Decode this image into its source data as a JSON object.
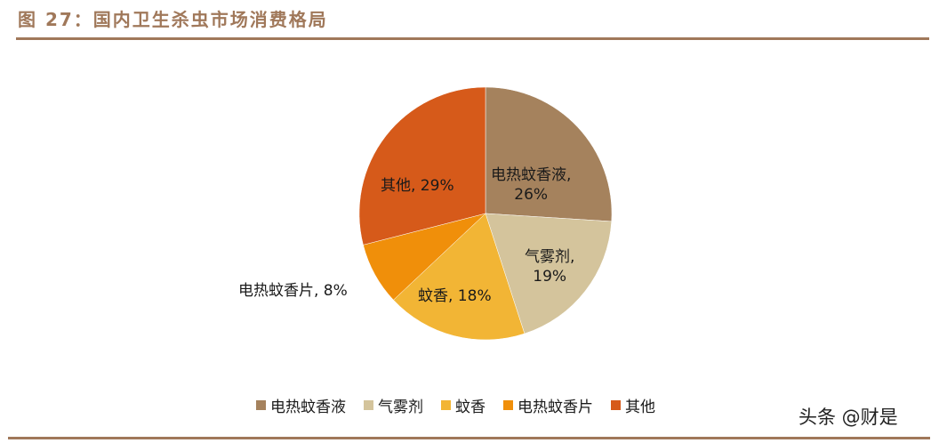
{
  "header": {
    "title": "图 27：国内卫生杀虫市场消费格局"
  },
  "chart_data": {
    "type": "pie",
    "title": "国内卫生杀虫市场消费格局",
    "start_angle": "12 o'clock, clockwise",
    "categories": [
      "电热蚊香液",
      "气雾剂",
      "蚊香",
      "电热蚊香片",
      "其他"
    ],
    "values": [
      26,
      19,
      18,
      8,
      29
    ],
    "unit": "%",
    "colors": [
      "#a5825d",
      "#d4c49c",
      "#f2b535",
      "#f08f0a",
      "#d65a1a"
    ],
    "data_labels": [
      "电热蚊香液, 26%",
      "气雾剂, 19%",
      "蚊香, 18%",
      "电热蚊香片, 8%",
      "其他, 29%"
    ],
    "legend_position": "bottom"
  },
  "labels": {
    "ehl": {
      "line1": "电热蚊香液,",
      "line2": "26%"
    },
    "qwj": {
      "line1": "气雾剂,",
      "line2": "19%"
    },
    "wx": "蚊香, 18%",
    "ehp": "电热蚊香片, 8%",
    "qt": "其他, 29%"
  },
  "legend": {
    "items": [
      {
        "label": "电热蚊香液",
        "color": "#a5825d"
      },
      {
        "label": "气雾剂",
        "color": "#d4c49c"
      },
      {
        "label": "蚊香",
        "color": "#f2b535"
      },
      {
        "label": "电热蚊香片",
        "color": "#f08f0a"
      },
      {
        "label": "其他",
        "color": "#d65a1a"
      }
    ]
  },
  "watermark": "头条 @财是"
}
